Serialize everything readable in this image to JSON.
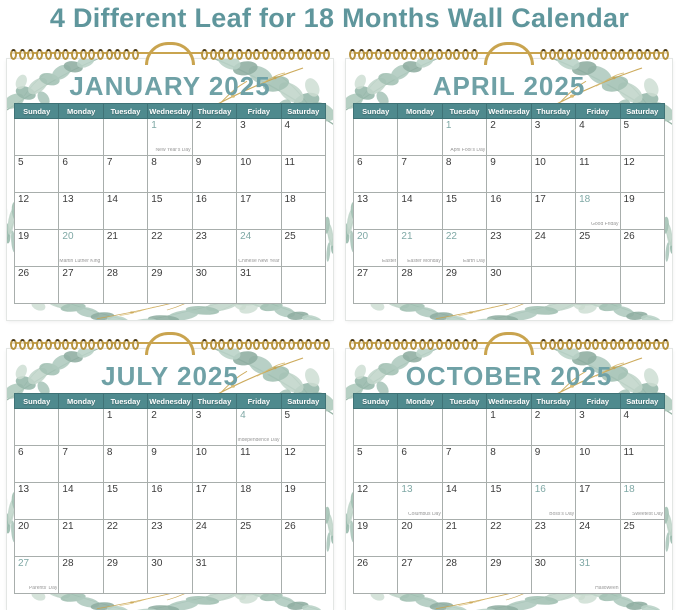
{
  "page_title": "4 Different Leaf for 18 Months Wall Calendar",
  "colors": {
    "title_teal": "#5f969c",
    "month_title_teal": "#6fa1a6",
    "day_header_band": "#4f8a8e",
    "holiday_date_teal": "#7fa8a5",
    "date_text": "#3b3b3b",
    "binding_gold": "#c9a44f",
    "leaf_green": "#9dbcae",
    "gold_branch": "#c9a44f"
  },
  "days_of_week": [
    "Sunday",
    "Monday",
    "Tuesday",
    "Wednesday",
    "Thursday",
    "Friday",
    "Saturday"
  ],
  "calendars": [
    {
      "title": "JANUARY 2025",
      "weeks": [
        [
          "",
          "",
          "",
          "1",
          "2",
          "3",
          "4"
        ],
        [
          "5",
          "6",
          "7",
          "8",
          "9",
          "10",
          "11"
        ],
        [
          "12",
          "13",
          "14",
          "15",
          "16",
          "17",
          "18"
        ],
        [
          "19",
          "20",
          "21",
          "22",
          "23",
          "24",
          "25"
        ],
        [
          "26",
          "27",
          "28",
          "29",
          "30",
          "31",
          ""
        ]
      ],
      "holidays": [
        {
          "date": "1",
          "label": "New Year's Day"
        },
        {
          "date": "20",
          "label": "Martin Luther King Day"
        },
        {
          "date": "24",
          "label": "Chinese New Year"
        }
      ]
    },
    {
      "title": "APRIL 2025",
      "weeks": [
        [
          "",
          "",
          "1",
          "2",
          "3",
          "4",
          "5"
        ],
        [
          "6",
          "7",
          "8",
          "9",
          "10",
          "11",
          "12"
        ],
        [
          "13",
          "14",
          "15",
          "16",
          "17",
          "18",
          "19"
        ],
        [
          "20",
          "21",
          "22",
          "23",
          "24",
          "25",
          "26"
        ],
        [
          "27",
          "28",
          "29",
          "30",
          "",
          "",
          ""
        ]
      ],
      "holidays": [
        {
          "date": "1",
          "label": "April Fool's Day"
        },
        {
          "date": "18",
          "label": "Good Friday"
        },
        {
          "date": "20",
          "label": "Easter"
        },
        {
          "date": "21",
          "label": "Easter Monday"
        },
        {
          "date": "22",
          "label": "Earth Day"
        }
      ]
    },
    {
      "title": "JULY 2025",
      "weeks": [
        [
          "",
          "",
          "1",
          "2",
          "3",
          "4",
          "5"
        ],
        [
          "6",
          "7",
          "8",
          "9",
          "10",
          "11",
          "12"
        ],
        [
          "13",
          "14",
          "15",
          "16",
          "17",
          "18",
          "19"
        ],
        [
          "20",
          "21",
          "22",
          "23",
          "24",
          "25",
          "26"
        ],
        [
          "27",
          "28",
          "29",
          "30",
          "31",
          "",
          ""
        ]
      ],
      "holidays": [
        {
          "date": "4",
          "label": "Independence Day"
        },
        {
          "date": "27",
          "label": "Parents' Day"
        }
      ]
    },
    {
      "title": "OCTOBER 2025",
      "weeks": [
        [
          "",
          "",
          "",
          "1",
          "2",
          "3",
          "4"
        ],
        [
          "5",
          "6",
          "7",
          "8",
          "9",
          "10",
          "11"
        ],
        [
          "12",
          "13",
          "14",
          "15",
          "16",
          "17",
          "18"
        ],
        [
          "19",
          "20",
          "21",
          "22",
          "23",
          "24",
          "25"
        ],
        [
          "26",
          "27",
          "28",
          "29",
          "30",
          "31",
          ""
        ]
      ],
      "holidays": [
        {
          "date": "13",
          "label": "Columbus Day"
        },
        {
          "date": "16",
          "label": "Boss's Day"
        },
        {
          "date": "18",
          "label": "Sweetest Day"
        },
        {
          "date": "31",
          "label": "Halloween"
        }
      ]
    }
  ]
}
